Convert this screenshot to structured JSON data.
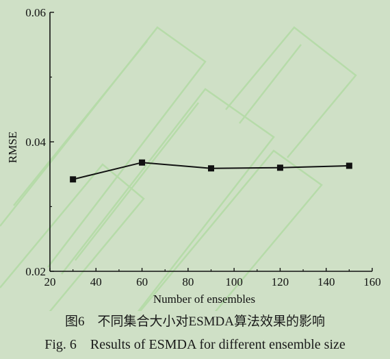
{
  "chart_data": {
    "type": "line",
    "title": "",
    "xlabel": "Number of ensembles",
    "ylabel": "RMSE",
    "xlim": [
      20,
      160
    ],
    "ylim": [
      0.02,
      0.06
    ],
    "x_ticks": [
      "20",
      "40",
      "60",
      "80",
      "100",
      "120",
      "140",
      "160"
    ],
    "y_ticks": [
      "0.02",
      "0.04",
      "0.06"
    ],
    "grid": false,
    "marker": "square",
    "series": [
      {
        "x": [
          30,
          60,
          90,
          120,
          150
        ],
        "values": [
          0.0342,
          0.0368,
          0.0359,
          0.036,
          0.0363
        ]
      }
    ]
  },
  "caption": {
    "chinese": "图6　不同集合大小对ESMDA算法效果的影响",
    "english": "Fig. 6　Results of ESMDA for different ensemble size"
  },
  "colors": {
    "background": "#cfe0c6",
    "line": "#111111",
    "watermark": "#b9e0ad"
  }
}
